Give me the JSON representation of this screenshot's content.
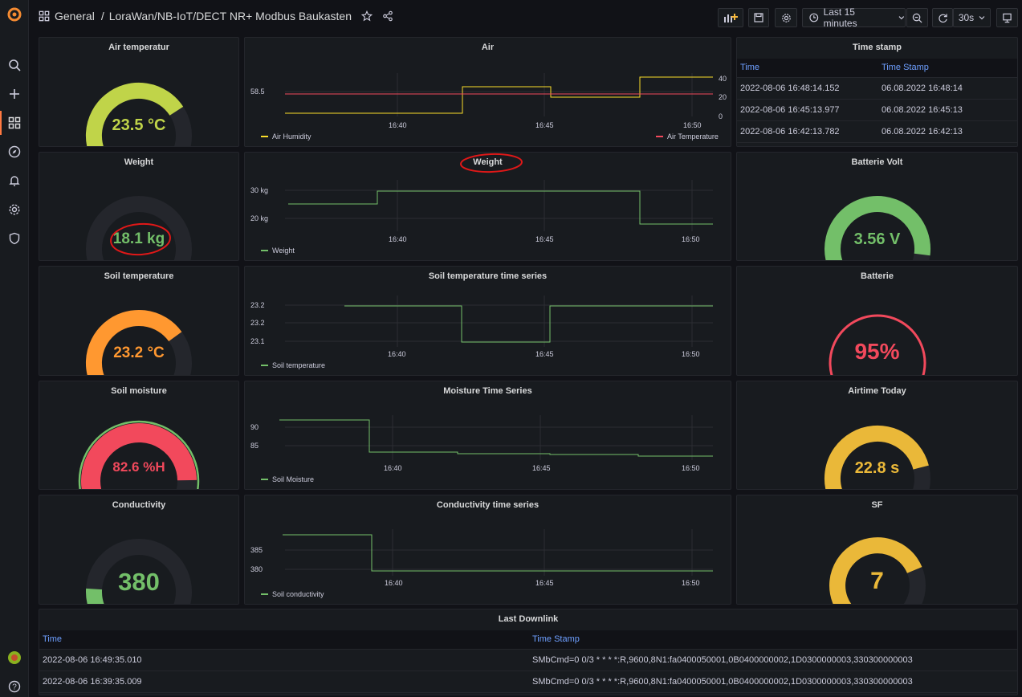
{
  "breadcrumb": {
    "folder": "General",
    "separator": "/",
    "title": "LoraWan/NB-IoT/DECT NR+ Modbus Baukasten"
  },
  "toolbar": {
    "time_range": "Last 15 minutes",
    "refresh_interval": "30s"
  },
  "gauges": {
    "air_temp": {
      "title": "Air temperatur",
      "value": "23.5 °C",
      "fraction": 0.71,
      "color": "#c0d449"
    },
    "weight": {
      "title": "Weight",
      "value": "18.1 kg",
      "fraction": 0.06,
      "color": "#73bf69"
    },
    "soil_temp": {
      "title": "Soil temperature",
      "value": "23.2 °C",
      "fraction": 0.7,
      "color": "#ff9830"
    },
    "soil_moisture": {
      "title": "Soil moisture",
      "value": "82.6 %H",
      "fraction": 0.83,
      "color": "#f2495c"
    },
    "conductivity": {
      "title": "Conductivity",
      "value": "380",
      "fraction": 0.18,
      "color": "#73bf69"
    },
    "batterie_volt": {
      "title": "Batterie Volt",
      "value": "3.56 V",
      "fraction": 0.86,
      "color": "#73bf69"
    },
    "batterie": {
      "title": "Batterie",
      "value": "95%",
      "fraction": 0.95,
      "color": "#f2495c"
    },
    "airtime": {
      "title": "Airtime Today",
      "value": "22.8 s",
      "fraction": 0.78,
      "color": "#eab839"
    },
    "sf": {
      "title": "SF",
      "value": "7",
      "fraction": 0.75,
      "color": "#eab839"
    }
  },
  "timeseries": {
    "air": {
      "title": "Air",
      "y_left": [
        "58.5"
      ],
      "y_right": [
        "40",
        "20",
        "0"
      ],
      "x_ticks": [
        "16:40",
        "16:45",
        "16:50"
      ],
      "legend": [
        {
          "name": "Air Humidity",
          "color": "#fade2a"
        },
        {
          "name": "Air Temperature",
          "color": "#f2495c"
        }
      ]
    },
    "weight": {
      "title": "Weight",
      "y_left": [
        "30 kg",
        "20 kg"
      ],
      "x_ticks": [
        "16:40",
        "16:45",
        "16:50"
      ],
      "legend": [
        {
          "name": "Weight",
          "color": "#73bf69"
        }
      ]
    },
    "soil_temp": {
      "title": "Soil temperature time series",
      "y_left": [
        "23.2",
        "23.2",
        "23.1"
      ],
      "x_ticks": [
        "16:40",
        "16:45",
        "16:50"
      ],
      "legend": [
        {
          "name": "Soil temperature",
          "color": "#73bf69"
        }
      ]
    },
    "moisture": {
      "title": "Moisture Time Series",
      "y_left": [
        "90",
        "85"
      ],
      "x_ticks": [
        "16:40",
        "16:45",
        "16:50"
      ],
      "legend": [
        {
          "name": "Soil Moisture",
          "color": "#73bf69"
        }
      ]
    },
    "conductivity": {
      "title": "Conductivity time series",
      "y_left": [
        "385",
        "380"
      ],
      "x_ticks": [
        "16:40",
        "16:45",
        "16:50"
      ],
      "legend": [
        {
          "name": "Soil conductivity",
          "color": "#73bf69"
        }
      ]
    }
  },
  "timestamp_table": {
    "title": "Time stamp",
    "columns": [
      "Time",
      "Time Stamp"
    ],
    "rows": [
      [
        "2022-08-06 16:48:14.152",
        "06.08.2022 16:48:14"
      ],
      [
        "2022-08-06 16:45:13.977",
        "06.08.2022 16:45:13"
      ],
      [
        "2022-08-06 16:42:13.782",
        "06.08.2022 16:42:13"
      ]
    ]
  },
  "downlink_table": {
    "title": "Last Downlink",
    "columns": [
      "Time",
      "Time Stamp"
    ],
    "rows": [
      [
        "2022-08-06 16:49:35.010",
        "SMbCmd=0 0/3 * * * *:R,9600,8N1:fa0400050001,0B0400000002,1D0300000003,330300000003"
      ],
      [
        "2022-08-06 16:39:35.009",
        "SMbCmd=0 0/3 * * * *:R,9600,8N1:fa0400050001,0B0400000002,1D0300000003,330300000003"
      ]
    ]
  }
}
